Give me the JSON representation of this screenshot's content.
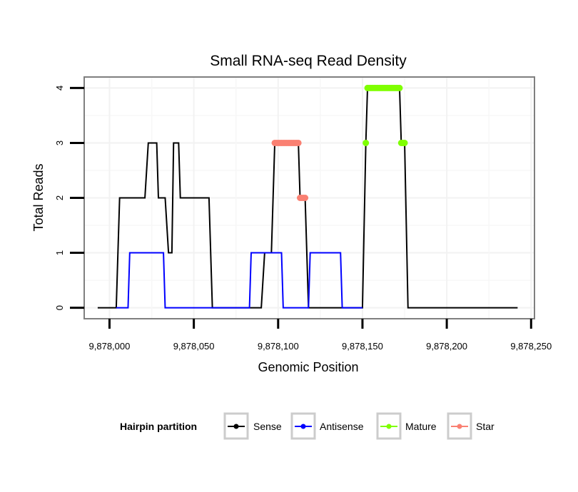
{
  "chart_data": {
    "type": "line",
    "title": "Small RNA-seq Read Density",
    "xlabel": "Genomic Position",
    "ylabel": "Total Reads",
    "xlim": [
      9877985,
      9878252
    ],
    "ylim": [
      -0.2,
      4.2
    ],
    "x_ticks": [
      9878000,
      9878050,
      9878100,
      9878150,
      9878200,
      9878250
    ],
    "x_tick_labels": [
      "9,878,000",
      "9,878,050",
      "9,878,100",
      "9,878,150",
      "9,878,200",
      "9,878,250"
    ],
    "y_ticks": [
      0,
      1,
      2,
      3,
      4
    ],
    "y_tick_labels": [
      "0",
      "1",
      "2",
      "3",
      "4"
    ],
    "grid": true,
    "legend": {
      "title": "Hairpin partition",
      "placement": "bottom",
      "entries": [
        "Sense",
        "Antisense",
        "Mature",
        "Star"
      ]
    },
    "series": [
      {
        "name": "Sense",
        "color": "#000000",
        "kind": "line",
        "points": [
          [
            9877993,
            0
          ],
          [
            9878004,
            0
          ],
          [
            9878006,
            2
          ],
          [
            9878021,
            2
          ],
          [
            9878023,
            3
          ],
          [
            9878028,
            3
          ],
          [
            9878029,
            2
          ],
          [
            9878033,
            2
          ],
          [
            9878035,
            1
          ],
          [
            9878037,
            1
          ],
          [
            9878038,
            3
          ],
          [
            9878041,
            3
          ],
          [
            9878042,
            2
          ],
          [
            9878059,
            2
          ],
          [
            9878061,
            0
          ],
          [
            9878090,
            0
          ],
          [
            9878092,
            1
          ],
          [
            9878096,
            1
          ],
          [
            9878097,
            2
          ],
          [
            9878098,
            3
          ],
          [
            9878112,
            3
          ],
          [
            9878113,
            2
          ],
          [
            9878116,
            2
          ],
          [
            9878118,
            0
          ],
          [
            9878150,
            0
          ],
          [
            9878152,
            3
          ],
          [
            9878153,
            4
          ],
          [
            9878172,
            4
          ],
          [
            9878173,
            3
          ],
          [
            9878175,
            3
          ],
          [
            9878177,
            0
          ],
          [
            9878242,
            0
          ]
        ]
      },
      {
        "name": "Antisense",
        "color": "#0000ff",
        "kind": "line",
        "points": [
          [
            9878004,
            0
          ],
          [
            9878011,
            0
          ],
          [
            9878012,
            1
          ],
          [
            9878032,
            1
          ],
          [
            9878033,
            0
          ],
          [
            9878061,
            0
          ],
          [
            9878083,
            0
          ],
          [
            9878084,
            1
          ],
          [
            9878102,
            1
          ],
          [
            9878103,
            0
          ],
          [
            9878118,
            0
          ],
          [
            9878119,
            1
          ],
          [
            9878137,
            1
          ],
          [
            9878138,
            0
          ],
          [
            9878150,
            0
          ]
        ]
      },
      {
        "name": "Mature",
        "color": "#7fff00",
        "kind": "point",
        "points": [
          [
            9878152,
            3
          ],
          [
            9878153,
            4
          ],
          [
            9878154,
            4
          ],
          [
            9878155,
            4
          ],
          [
            9878156,
            4
          ],
          [
            9878157,
            4
          ],
          [
            9878158,
            4
          ],
          [
            9878159,
            4
          ],
          [
            9878160,
            4
          ],
          [
            9878161,
            4
          ],
          [
            9878162,
            4
          ],
          [
            9878163,
            4
          ],
          [
            9878164,
            4
          ],
          [
            9878165,
            4
          ],
          [
            9878166,
            4
          ],
          [
            9878167,
            4
          ],
          [
            9878168,
            4
          ],
          [
            9878169,
            4
          ],
          [
            9878170,
            4
          ],
          [
            9878171,
            4
          ],
          [
            9878172,
            4
          ],
          [
            9878173,
            3
          ],
          [
            9878174,
            3
          ],
          [
            9878175,
            3
          ]
        ]
      },
      {
        "name": "Star",
        "color": "#fa8072",
        "kind": "point",
        "points": [
          [
            9878098,
            3
          ],
          [
            9878099,
            3
          ],
          [
            9878100,
            3
          ],
          [
            9878101,
            3
          ],
          [
            9878102,
            3
          ],
          [
            9878103,
            3
          ],
          [
            9878104,
            3
          ],
          [
            9878105,
            3
          ],
          [
            9878106,
            3
          ],
          [
            9878107,
            3
          ],
          [
            9878108,
            3
          ],
          [
            9878109,
            3
          ],
          [
            9878110,
            3
          ],
          [
            9878111,
            3
          ],
          [
            9878112,
            3
          ],
          [
            9878113,
            2
          ],
          [
            9878114,
            2
          ],
          [
            9878115,
            2
          ],
          [
            9878116,
            2
          ]
        ]
      }
    ]
  }
}
